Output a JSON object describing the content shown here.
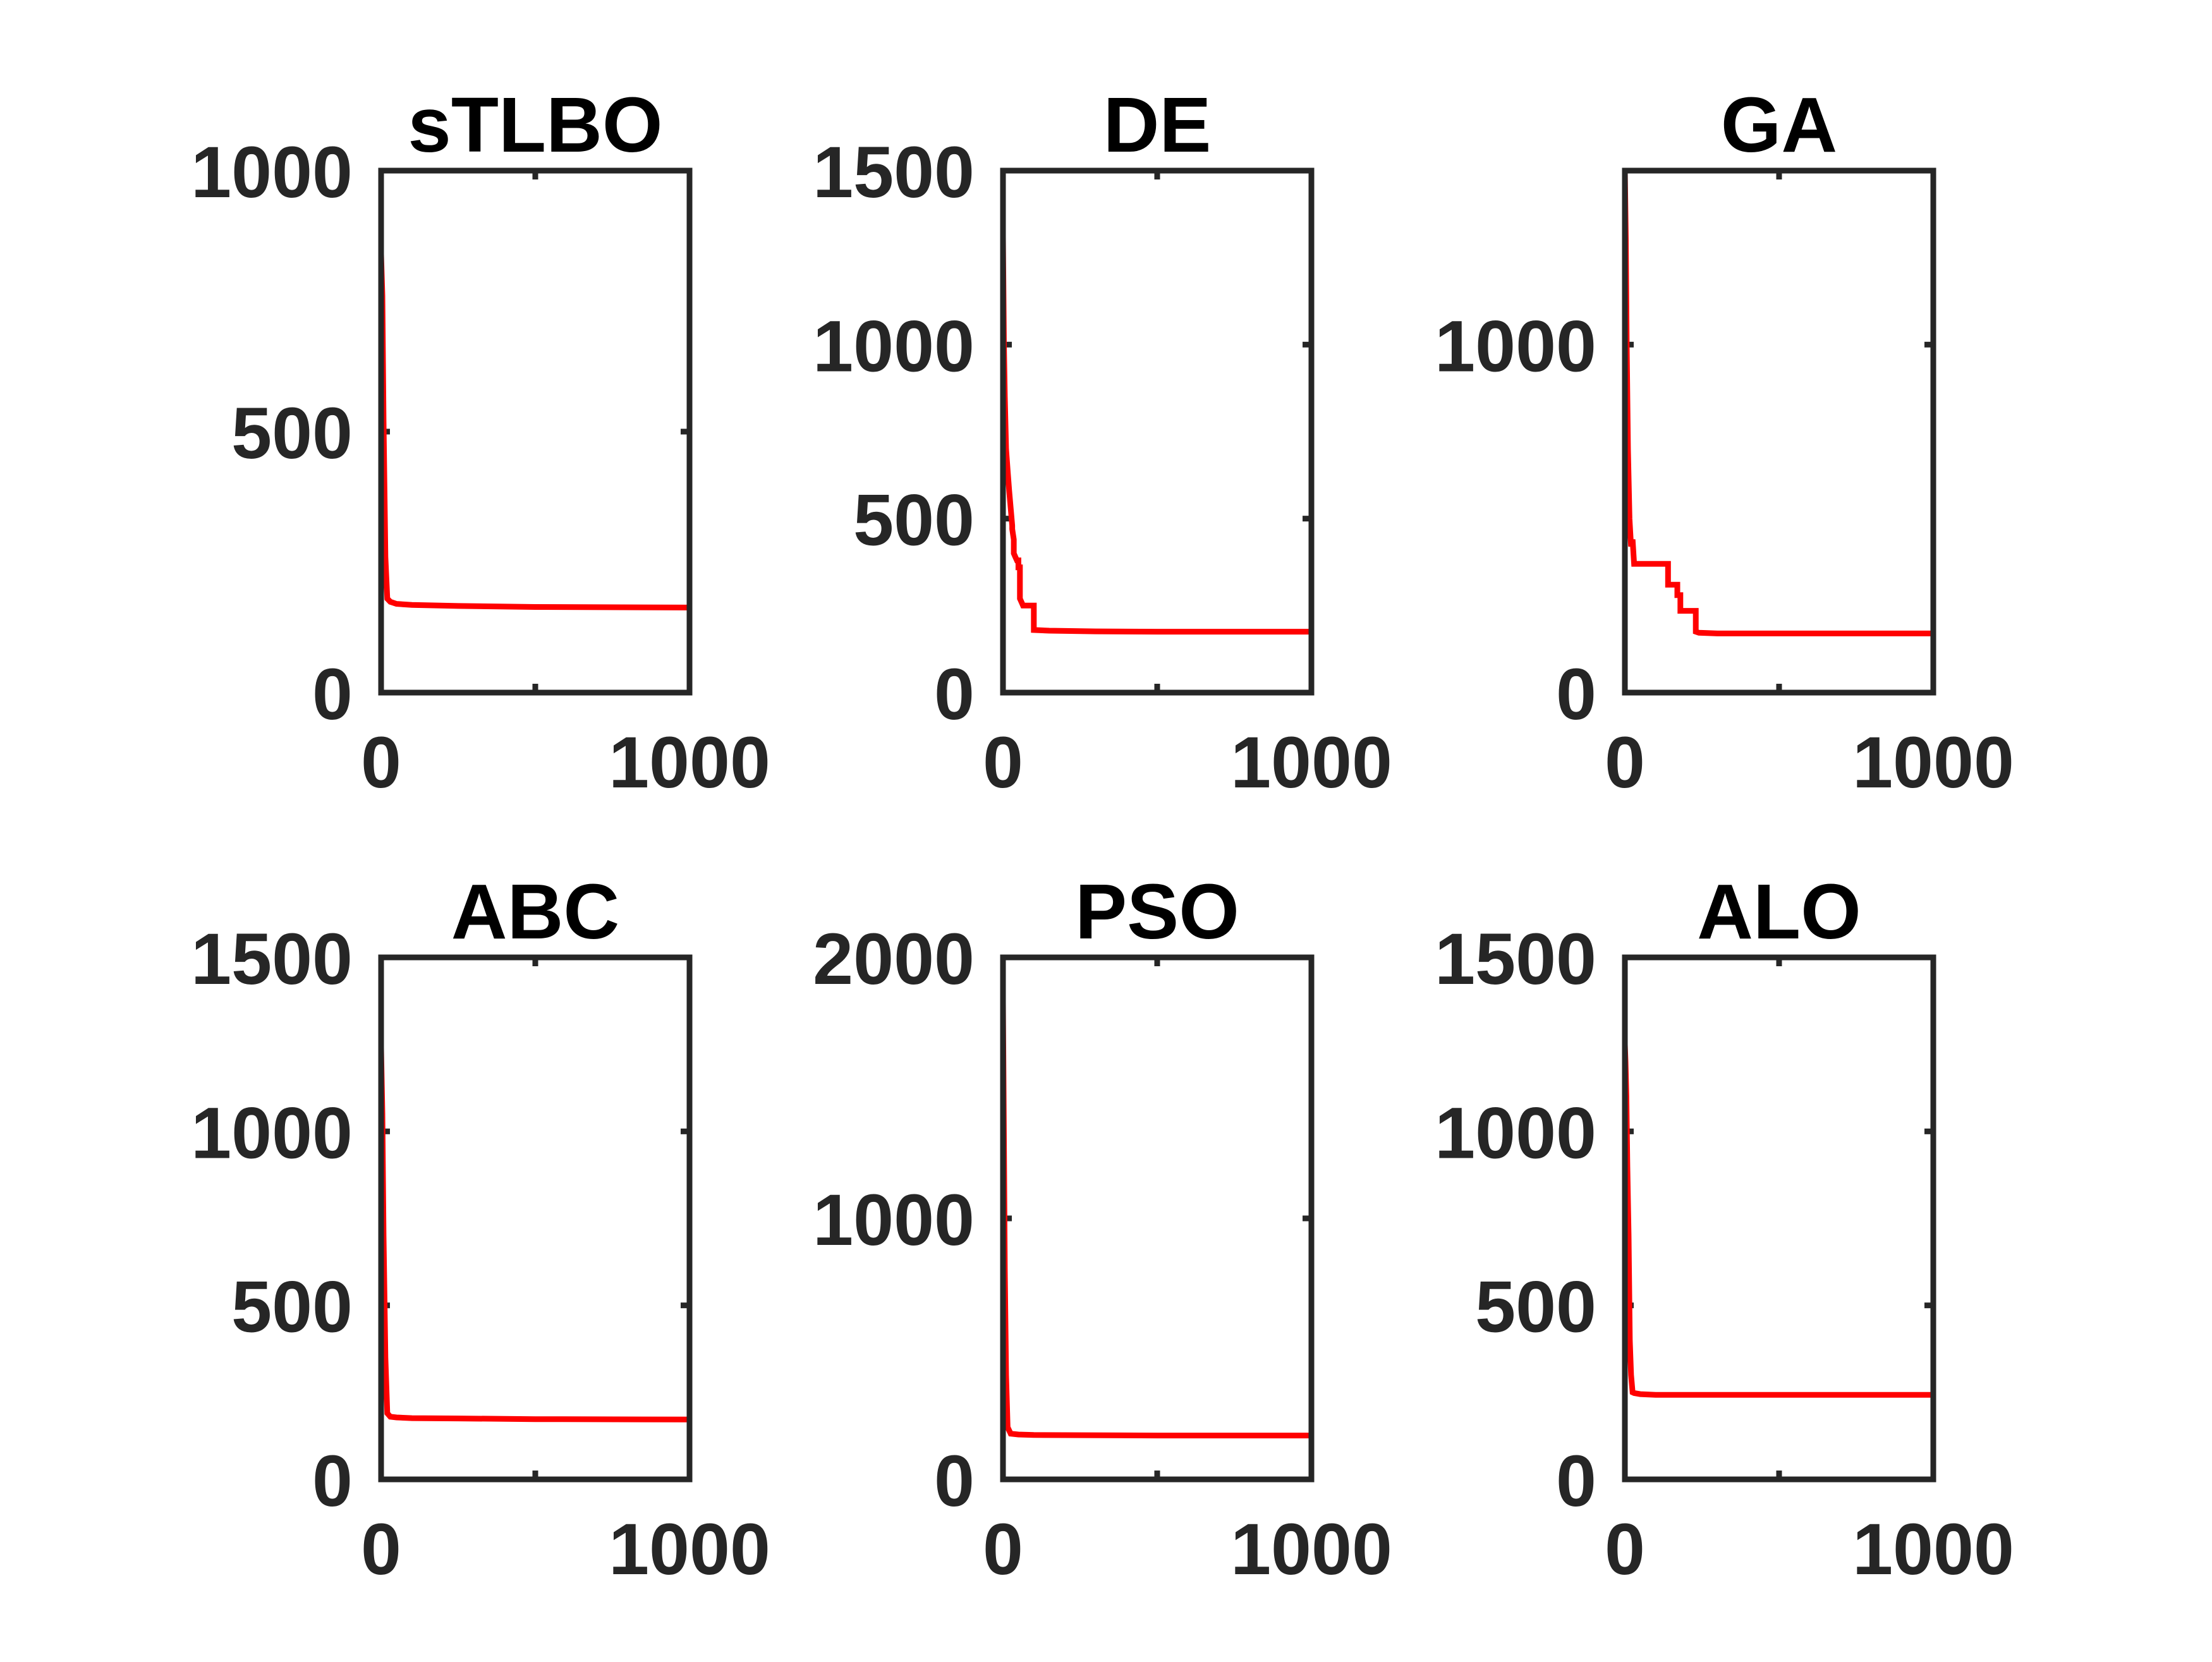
{
  "figure": {
    "line_color": "#ff0000",
    "axes_color": "#262626",
    "background": "#ffffff"
  },
  "chart_data": [
    {
      "type": "line",
      "title": "sTLBO",
      "xlabel": "",
      "ylabel": "",
      "xlim": [
        0,
        1000
      ],
      "ylim": [
        0,
        1000
      ],
      "xticks": [
        0,
        1000
      ],
      "yticks": [
        0,
        500,
        1000
      ],
      "grid": false,
      "series": [
        {
          "x": [
            0,
            4,
            8,
            14,
            20,
            30,
            50,
            100,
            250,
            500,
            1000
          ],
          "y": [
            840,
            760,
            520,
            260,
            180,
            174,
            170,
            168,
            166,
            164,
            163
          ]
        }
      ]
    },
    {
      "type": "line",
      "title": "DE",
      "xlabel": "",
      "ylabel": "",
      "xlim": [
        0,
        1000
      ],
      "ylim": [
        0,
        1500
      ],
      "xticks": [
        0,
        1000
      ],
      "yticks": [
        0,
        500,
        1000,
        1500
      ],
      "grid": false,
      "series": [
        {
          "x": [
            0,
            3,
            6,
            10,
            15,
            20,
            25,
            30,
            30,
            35,
            35,
            40,
            45,
            50,
            50,
            55,
            55,
            60,
            65,
            70,
            70,
            80,
            95,
            100,
            100,
            150,
            300,
            500,
            1000
          ],
          "y": [
            1310,
            1000,
            850,
            700,
            640,
            580,
            530,
            480,
            470,
            440,
            400,
            390,
            380,
            380,
            360,
            360,
            270,
            260,
            250,
            250,
            250,
            250,
            250,
            250,
            180,
            178,
            176,
            175,
            175
          ]
        }
      ]
    },
    {
      "type": "line",
      "title": "GA",
      "xlabel": "",
      "ylabel": "",
      "xlim": [
        0,
        1000
      ],
      "ylim": [
        0,
        1500
      ],
      "xticks": [
        0,
        1000
      ],
      "yticks": [
        0,
        1000
      ],
      "grid": false,
      "series": [
        {
          "x": [
            0,
            3,
            6,
            10,
            15,
            20,
            25,
            30,
            40,
            80,
            140,
            140,
            170,
            170,
            180,
            180,
            230,
            230,
            240,
            300,
            500,
            1000
          ],
          "y": [
            1500,
            1300,
            1000,
            700,
            500,
            420,
            440,
            370,
            370,
            370,
            370,
            310,
            310,
            280,
            280,
            235,
            235,
            175,
            172,
            170,
            170,
            170
          ]
        }
      ]
    },
    {
      "type": "line",
      "title": "ABC",
      "xlabel": "",
      "ylabel": "",
      "xlim": [
        0,
        1000
      ],
      "ylim": [
        0,
        1500
      ],
      "xticks": [
        0,
        1000
      ],
      "yticks": [
        0,
        500,
        1000,
        1500
      ],
      "grid": false,
      "series": [
        {
          "x": [
            0,
            4,
            8,
            14,
            20,
            30,
            50,
            100,
            250,
            500,
            1000
          ],
          "y": [
            1240,
            1050,
            700,
            350,
            190,
            180,
            178,
            176,
            175,
            173,
            172
          ]
        }
      ]
    },
    {
      "type": "line",
      "title": "PSO",
      "xlabel": "",
      "ylabel": "",
      "xlim": [
        0,
        1000
      ],
      "ylim": [
        0,
        2000
      ],
      "xticks": [
        0,
        1000
      ],
      "yticks": [
        0,
        1000,
        2000
      ],
      "grid": false,
      "series": [
        {
          "x": [
            0,
            3,
            6,
            10,
            15,
            25,
            50,
            100,
            500,
            1000
          ],
          "y": [
            1830,
            1300,
            800,
            400,
            200,
            175,
            172,
            170,
            168,
            168
          ]
        }
      ]
    },
    {
      "type": "line",
      "title": "ALO",
      "xlabel": "",
      "ylabel": "",
      "xlim": [
        0,
        1000
      ],
      "ylim": [
        0,
        1500
      ],
      "xticks": [
        0,
        1000
      ],
      "yticks": [
        0,
        500,
        1000,
        1500
      ],
      "grid": false,
      "series": [
        {
          "x": [
            0,
            0,
            2,
            5,
            8,
            12,
            16,
            20,
            25,
            30,
            50,
            100,
            500,
            1000
          ],
          "y": [
            10,
            1250,
            1200,
            1100,
            900,
            700,
            400,
            300,
            250,
            248,
            245,
            243,
            243,
            243
          ]
        }
      ]
    }
  ]
}
